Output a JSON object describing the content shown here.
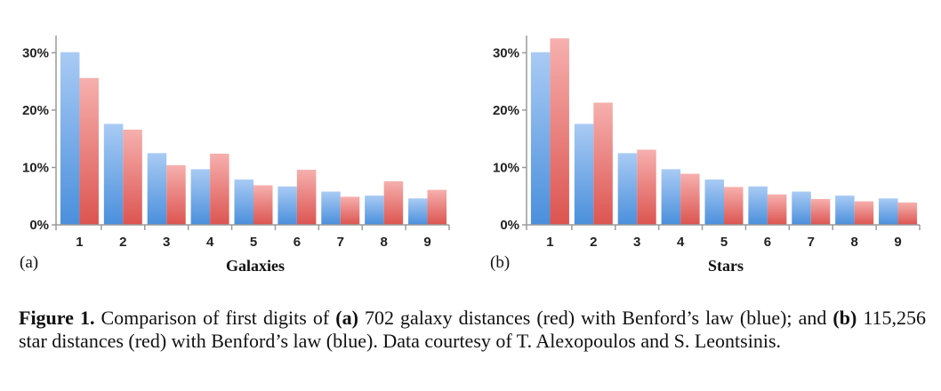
{
  "chart_data": [
    {
      "type": "bar",
      "panel_label": "(a)",
      "title": "",
      "xlabel": "Galaxies",
      "ylabel": "",
      "categories": [
        "1",
        "2",
        "3",
        "4",
        "5",
        "6",
        "7",
        "8",
        "9"
      ],
      "series": [
        {
          "name": "Benford's law",
          "color_top": "#a9cbf4",
          "color_bottom": "#4a8fdc",
          "values": [
            30.1,
            17.6,
            12.5,
            9.7,
            7.9,
            6.7,
            5.8,
            5.1,
            4.6
          ]
        },
        {
          "name": "Galaxy distances",
          "color_top": "#f6b0ae",
          "color_bottom": "#dc5450",
          "values": [
            25.6,
            16.6,
            10.4,
            12.4,
            6.9,
            9.6,
            4.9,
            7.6,
            6.1
          ]
        }
      ],
      "ylim": [
        0,
        33
      ],
      "yticks": [
        0,
        10,
        20,
        30
      ],
      "ytick_labels": [
        "0%",
        "10%",
        "20%",
        "30%"
      ]
    },
    {
      "type": "bar",
      "panel_label": "(b)",
      "title": "",
      "xlabel": "Stars",
      "ylabel": "",
      "categories": [
        "1",
        "2",
        "3",
        "4",
        "5",
        "6",
        "7",
        "8",
        "9"
      ],
      "series": [
        {
          "name": "Benford's law",
          "color_top": "#a9cbf4",
          "color_bottom": "#4a8fdc",
          "values": [
            30.1,
            17.6,
            12.5,
            9.7,
            7.9,
            6.7,
            5.8,
            5.1,
            4.6
          ]
        },
        {
          "name": "Star distances",
          "color_top": "#f6b0ae",
          "color_bottom": "#dc5450",
          "values": [
            32.5,
            21.3,
            13.1,
            8.9,
            6.6,
            5.3,
            4.5,
            4.1,
            3.9
          ]
        }
      ],
      "ylim": [
        0,
        33
      ],
      "yticks": [
        0,
        10,
        20,
        30
      ],
      "ytick_labels": [
        "0%",
        "10%",
        "20%",
        "30%"
      ]
    }
  ],
  "caption": {
    "label": "Figure 1.",
    "text_1": " Comparison of first digits of ",
    "bold_a": "(a)",
    "text_2": " 702 galaxy distances (red) with Benford’s law (blue); and ",
    "bold_b": "(b)",
    "text_3": " 115,256 star distances (red) with Benford’s law (blue). Data courtesy of T. Alexopoulos and S. Leontsinis."
  }
}
